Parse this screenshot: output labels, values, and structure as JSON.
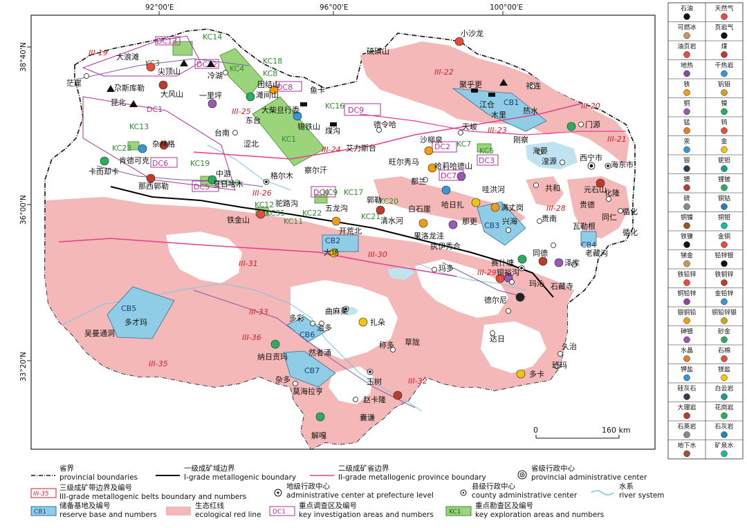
{
  "coords": {
    "top": [
      "92°00'E",
      "96°00'E",
      "100°00'E"
    ],
    "left": [
      "38°40'N",
      "36°00'N",
      "33°20'N"
    ]
  },
  "scale": {
    "zero": "0",
    "dist": "160 km"
  },
  "places": {
    "mangya": "茫崖",
    "dalangtan": "大浪滩",
    "lenghu": "冷湖",
    "jiantoushan": "尖顶山",
    "qisikuleqin": "尕斯库勒",
    "dafengshan": "大风山",
    "yiliping": "一里坪",
    "kunbei": "昆北",
    "tuanjieshan": "团结山",
    "tanjianshan": "滩间山",
    "yuka": "鱼卡",
    "dachaidan": "大柴旦行委",
    "xitieshan": "锡铁山",
    "meigou": "煤沟",
    "xiaoshalong": "小沙龙",
    "shuoshushan": "硫磺山",
    "jusenyue": "聚乎更",
    "qilian": "祁连",
    "jiangcang": "江仓",
    "muli": "木里",
    "reshui": "热水",
    "menyuan": "门源",
    "delingha": "德令哈",
    "tianjun": "天峻",
    "gangcha": "刚察",
    "haiyan": "海晏",
    "huangyuan": "湟源",
    "xining": "西宁市",
    "haidong": "海东市",
    "dongtai": "东台",
    "taigan": "台南",
    "sebei": "涩北",
    "zalinge": "杂林格",
    "kendekeke": "肯德可克",
    "kawatebu": "卡而却卡",
    "zhongyou": "中游",
    "xiaririhamu": "夏日哈木",
    "nalenguole": "那西郭勒",
    "geermu": "格尔木",
    "chaerhan": "察尔汗",
    "wulan": "乌兰",
    "aileisitai": "艾力斯台",
    "shaliuquan": "沙柳泉",
    "wangerxiuma": "旺尔秀马",
    "haliha": "哈莉哈德山",
    "dudan": "都兰",
    "wahonghe": "哇洪河",
    "gonghe": "共和",
    "yuanshishan": "元石山",
    "huangzhong": "化隆",
    "xunhua": "循化",
    "guide": "贵德",
    "tongren": "同仁",
    "xunhuakang": "循化",
    "tiejinshan": "铁金山",
    "hongliugou": "驼路沟",
    "wulonggou": "五龙沟",
    "guojun": "郭勒",
    "baishiya": "白石崖",
    "haririzha": "哈日扎",
    "manwengang": "满丈岗",
    "xinghai": "兴海",
    "qingshuihe": "清水河",
    "kaihuangbei": "开荒北",
    "nahe": "那更",
    "guinan": "贵南",
    "walecheng": "瓦勒根",
    "laozangou": "老藏沟",
    "guoluolongwa": "果洛龙洼",
    "zhiyanghai": "执伊秀合",
    "saishitang": "赛什塘",
    "tongyugou": "铜裕沟",
    "tongde": "同德",
    "zeku": "泽库",
    "dachang": "大场",
    "maduo": "玛多",
    "maqin": "玛沁",
    "shizangsi": "石藏寺",
    "deerni": "德尔尼",
    "qumalai": "曲麻莱",
    "duocai": "多彩",
    "zhiduo": "治多",
    "zhaduo": "扎朵",
    "duocaima": "多才玛",
    "wumantongdong": "吴曼通洞",
    "chengduo": "称多",
    "caolong": "草陇",
    "darri": "达日",
    "jiuzhi": "久治",
    "banma": "班玛",
    "naribugongma": "纳日贡玛",
    "ranzhe": "然者涌",
    "zaduo": "杂多",
    "mohailatong": "莫海拉亨",
    "yushu": "玉树",
    "zhaokalong": "赵卡隆",
    "nangqian": "囊谦",
    "jieang": "解嘎",
    "duoka": "多卡"
  },
  "zones": {
    "III19": "III-19",
    "III20": "III-20",
    "III21": "III-21",
    "III22": "III-22",
    "III23": "III-23",
    "III24": "III-24",
    "III25": "III-25",
    "III26": "III-26",
    "III28": "III-28",
    "III29": "III-29",
    "III30": "III-30",
    "III31": "III-31",
    "III32": "III-32",
    "III33": "III-33",
    "III35": "III-35",
    "III36": "III-36"
  },
  "kc": {
    "kc1": "KC1",
    "kc3": "KC3",
    "kc4": "KC4",
    "kc5": "KC5",
    "kc7": "KC7",
    "kc8": "KC8",
    "kc9": "KC9",
    "kc10": "KC10",
    "kc11": "KC11",
    "kc12": "KC12",
    "kc13": "KC13",
    "kc14": "KC14",
    "kc16": "KC16",
    "kc17": "KC17",
    "kc18": "KC18",
    "kc19": "KC19",
    "kc20": "KC20",
    "kc21": "KC21",
    "kc22": "KC22",
    "kc23": "KC23",
    "kc35": "KC35"
  },
  "dc": {
    "dc1": "DC1",
    "dc2": "DC2",
    "dc3": "DC3",
    "dc4": "DC4",
    "dc5": "DC5",
    "dc6": "DC6",
    "dc7": "DC7",
    "dc8": "DC8",
    "dc9": "DC9",
    "dc12": "DC12",
    "dc13": "DC13"
  },
  "cb": {
    "cb1": "CB1",
    "cb2": "CB2",
    "cb3": "CB3",
    "cb4": "CB4",
    "cb5": "CB5",
    "cb6": "CB6",
    "cb7": "CB7"
  },
  "legend_right": [
    [
      "石油",
      "天然气"
    ],
    [
      "可燃冰",
      "页岩气"
    ],
    [
      "油页岩",
      "煤"
    ],
    [
      "地热",
      "干热岩"
    ],
    [
      "铁",
      "钒钼"
    ],
    [
      "铜",
      "镍"
    ],
    [
      "锰",
      "钨"
    ],
    [
      "汞",
      "金"
    ],
    [
      "银",
      "铌钽"
    ],
    [
      "锶",
      "锂铍"
    ],
    [
      "硫",
      "铜钴"
    ],
    [
      "铜镍",
      "铜钼"
    ],
    [
      "铁镍",
      "金铜"
    ],
    [
      "锑金",
      "铅锌银"
    ],
    [
      "铁铅锌",
      "铁铜锌"
    ],
    [
      "铜铅锌",
      "金铅锌"
    ],
    [
      "银铜铅",
      "铜铅锌银"
    ],
    [
      "砷银",
      "砂金"
    ],
    [
      "水晶",
      "石棉"
    ],
    [
      "钾盐",
      "镁盐"
    ],
    [
      "硅灰石",
      "白云岩"
    ],
    [
      "大理岩",
      "花岗岩"
    ],
    [
      "石英岩",
      "石灰岩"
    ],
    [
      "地下水",
      "矿泉水"
    ]
  ],
  "legend_bottom": {
    "prov_cn": "省界",
    "prov_en": "provincial boundaries",
    "g1_cn": "一级成矿域边界",
    "g1_en": "I-grade metallogenic boundary",
    "g2_cn": "二级成矿省边界",
    "g2_en": "II-grade metallogenic province boundary",
    "cap_cn": "省级行政中心",
    "cap_en": "provincial administrative center",
    "g3_cn": "三级成矿带边界及编号",
    "g3_en": "III-grade metallogenic belts boundary and numbers",
    "g3_code": "III-35",
    "pref_cn": "地级行政中心",
    "pref_en": "administrative center at prefecture level",
    "county_cn": "县级行政中心",
    "county_en": "county administrative center",
    "river_cn": "水系",
    "river_en": "river system",
    "cb_cn": "储备基地及编号",
    "cb_en": "reserve base and numbers",
    "cb_code": "CB1",
    "red_cn": "生态红线",
    "red_en": "ecological red line",
    "dc_cn": "重点调查区及编号",
    "dc_en": "key investigation areas and numbers",
    "dc_code": "DC1",
    "kc_cn": "重点勘查区及编号",
    "kc_en": "key exploration areas and numbers",
    "kc_code": "KC1"
  },
  "colors": {
    "red_line": "#f4b8b8",
    "cb": "#8fcde6",
    "kc": "#9bd47a",
    "belt3": "#d4202a",
    "belt2": "#e83c8c",
    "belt1": "#000000",
    "lake": "#bfe3ef"
  }
}
